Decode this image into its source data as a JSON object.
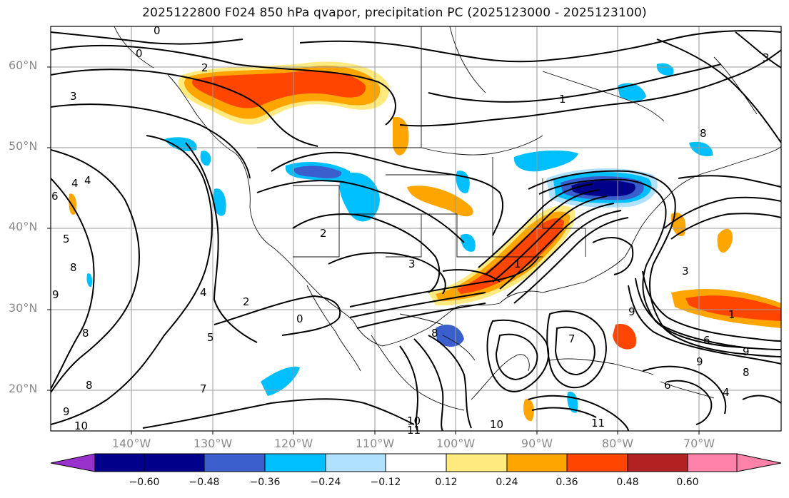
{
  "title": "2025122800 F024 850 hPa qvapor, precipitation PC (2025123000 - 2025123100)",
  "lat_labels": [
    "60°N",
    "50°N",
    "40°N",
    "30°N",
    "20°N"
  ],
  "lon_labels": [
    "140°W",
    "130°W",
    "120°W",
    "110°W",
    "100°W",
    "90°W",
    "80°W",
    "70°W"
  ],
  "colorbar": {
    "tick_labels": [
      "−0.60",
      "−0.48",
      "−0.36",
      "−0.24",
      "−0.12",
      "0.12",
      "0.24",
      "0.36",
      "0.48",
      "0.60"
    ],
    "colors": [
      "#9932cc",
      "#00008b",
      "#3a5fcd",
      "#00bfff",
      "#b0e2ff",
      "#ffffff",
      "#ffea7f",
      "#ffa500",
      "#ff4500",
      "#b22222",
      "#ff82ab"
    ]
  },
  "contour_labels": [
    "0",
    "0",
    "2",
    "3",
    "4",
    "4",
    "5",
    "6",
    "7",
    "8",
    "8",
    "8",
    "9",
    "9",
    "10",
    "10",
    "11",
    "2",
    "4",
    "5",
    "0",
    "3",
    "6",
    "9",
    "8",
    "10",
    "11",
    "1",
    "3",
    "1",
    "4",
    "6",
    "9",
    "8",
    "7",
    "9",
    "8",
    "3",
    "2",
    "1"
  ]
}
